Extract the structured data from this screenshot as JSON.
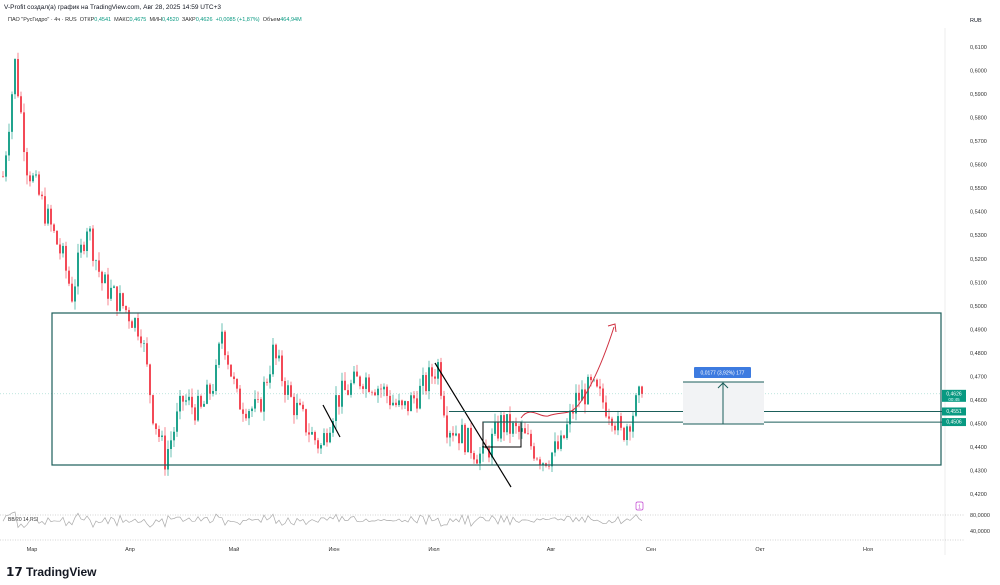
{
  "header": {
    "credit": "V-Profit создал(а) график на TradingView.com, Авг 28, 2025 14:59 UTC+3",
    "symbol": "ПАО \"РусГидро\" · 4ч · RUS",
    "open_label": "ОТКР",
    "open": "0,4541",
    "high_label": "МАКС",
    "high": "0,4675",
    "low_label": "МИН",
    "low": "0,4520",
    "close_label": "ЗАКР",
    "close": "0,4626",
    "change": "+0,0085 (+1,87%)",
    "volume_label": "Объем",
    "volume": "464,94M"
  },
  "currency": "RUB",
  "chart_data": {
    "type": "candlestick",
    "title": "ПАО \"РусГидро\" 4ч",
    "y_ticks": [
      "0,6100",
      "0,6000",
      "0,5900",
      "0,5800",
      "0,5700",
      "0,5600",
      "0,5500",
      "0,5400",
      "0,5300",
      "0,5200",
      "0,5100",
      "0,5000",
      "0,4900",
      "0,4800",
      "0,4700",
      "0,4600",
      "0,4500",
      "0,4400",
      "0,4300",
      "0,4200"
    ],
    "ylim": [
      0.415,
      0.615
    ],
    "x_ticks": [
      "Мар",
      "Апр",
      "Май",
      "Июн",
      "Июл",
      "Авг",
      "Сен",
      "Окт",
      "Ноя"
    ],
    "price_path": [
      [
        0,
        0.555
      ],
      [
        4,
        0.603
      ],
      [
        8,
        0.56
      ],
      [
        14,
        0.54
      ],
      [
        20,
        0.52
      ],
      [
        23,
        0.505
      ],
      [
        28,
        0.535
      ],
      [
        33,
        0.51
      ],
      [
        40,
        0.5
      ],
      [
        46,
        0.49
      ],
      [
        50,
        0.455
      ],
      [
        54,
        0.435
      ],
      [
        60,
        0.46
      ],
      [
        66,
        0.455
      ],
      [
        71,
        0.47
      ],
      [
        73,
        0.49
      ],
      [
        78,
        0.46
      ],
      [
        85,
        0.455
      ],
      [
        90,
        0.48
      ],
      [
        96,
        0.46
      ],
      [
        103,
        0.445
      ],
      [
        106,
        0.44
      ],
      [
        111,
        0.46
      ],
      [
        120,
        0.47
      ],
      [
        126,
        0.465
      ],
      [
        133,
        0.455
      ],
      [
        140,
        0.465
      ],
      [
        145,
        0.475
      ],
      [
        148,
        0.45
      ],
      [
        153,
        0.445
      ],
      [
        160,
        0.435
      ],
      [
        166,
        0.45
      ],
      [
        173,
        0.445
      ],
      [
        180,
        0.435
      ],
      [
        186,
        0.44
      ],
      [
        191,
        0.46
      ],
      [
        196,
        0.465
      ],
      [
        203,
        0.455
      ],
      [
        206,
        0.445
      ],
      [
        210,
        0.455
      ],
      [
        213,
        0.4626
      ]
    ],
    "levels": [
      {
        "label": "0,4626",
        "sub": "00:45",
        "price": 0.4626
      },
      {
        "label": "0,4551",
        "price": 0.4551
      },
      {
        "label": "0,4506",
        "price": 0.4506
      }
    ],
    "measure": {
      "label": "0,0177 (3,92%) 177"
    },
    "rsi": {
      "label": "BB/20 14 RSI",
      "ticks": [
        "80,0000",
        "40,0000"
      ]
    },
    "marker": "1",
    "colors": {
      "up": "#089981",
      "down": "#f23645",
      "box": "#1b5e5a",
      "measure": "#3d7be0"
    }
  },
  "brand": "TradingView"
}
